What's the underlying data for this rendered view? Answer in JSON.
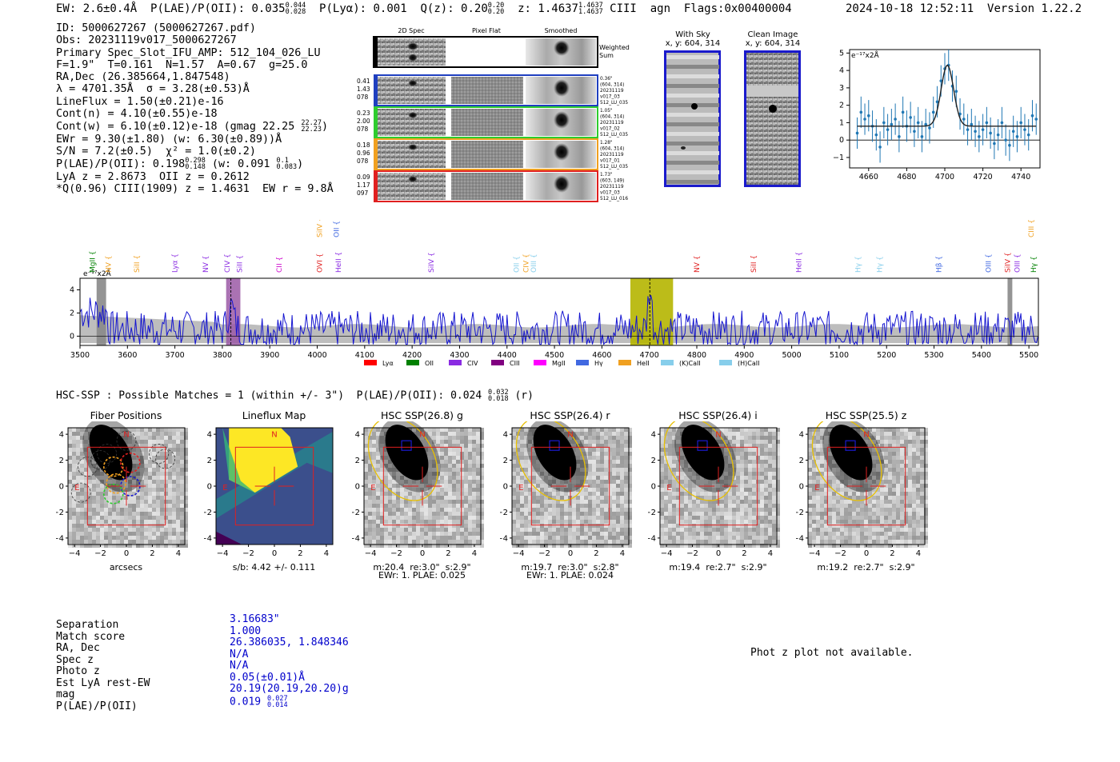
{
  "header": {
    "ew": "EW: 2.6±0.4Å",
    "plae": "P(LAE)/P(OII): 0.035",
    "plae_hi": "0.044",
    "plae_lo": "0.028",
    "plya": "P(Lyα): 0.001",
    "qz": "Q(z): 0.20",
    "qz_hi": "0.20",
    "qz_lo": "0.20",
    "z": "z: 1.4637",
    "z_hi": "1.4637",
    "z_lo": "1.4637",
    "line": "CIII",
    "cls": "agn",
    "flags": "Flags:0x00400004",
    "timestamp": "2024-10-18 12:52:11",
    "version": "Version 1.22.2"
  },
  "info": {
    "id": "ID: 5000627267 (5000627267.pdf)",
    "obs": "Obs: 20231119v017_5000627267",
    "primary": "Primary Spec_Slot_IFU_AMP: 512_104_026_LU",
    "fparams": "F=1.9\"  T=0.161  N=1.57  A=0.67  g=25.0",
    "radec": "RA,Dec (26.385664,1.847548)",
    "lambda": "λ = 4701.35Å  σ = 3.28(±0.53)Å",
    "lineflux": "LineFlux = 1.50(±0.21)e-16",
    "contn": "Cont(n) = 4.10(±0.55)e-18",
    "contw": "Cont(w) = 6.10(±0.12)e-18 (gmag 22.25",
    "gmag_hi": "22.27",
    "gmag_lo": "22.23",
    "ewr": "EWr = 9.30(±1.80) (w: 6.30(±0.89))Å",
    "sn": "S/N = 7.2(±0.5)  χ² = 1.0(±0.2)",
    "plae": "P(LAE)/P(OII): 0.198",
    "plae_hi": "0.298",
    "plae_lo": "0.148",
    "plae_w": "(w: 0.091",
    "plae_w_hi": "0.1",
    "plae_w_lo": "0.083",
    "lya": "LyA z = 2.8673  OII z = 0.2612",
    "qline": "*Q(0.96) CIII(1909) z = 1.4631  EW r = 9.8Å"
  },
  "cutouts": {
    "col_headers": [
      "2D Spec",
      "Pixel Flat",
      "Smoothed"
    ],
    "weighted_sum": "Weighted\nSum",
    "rows": [
      {
        "left": [
          "0.41",
          "1.43",
          "078"
        ],
        "right": [
          "0.36\"",
          "(604, 314)",
          "20231119",
          "v017_03",
          "512_LU_035"
        ],
        "color": "#1f3fbf"
      },
      {
        "left": [
          "0.23",
          "2.00",
          "078"
        ],
        "right": [
          "1.05\"",
          "(604, 314)",
          "20231119",
          "v017_02",
          "512_LU_035"
        ],
        "color": "#2ecc2e"
      },
      {
        "left": [
          "0.18",
          "0.96",
          "078"
        ],
        "right": [
          "1.28\"",
          "(604, 314)",
          "20231119",
          "v017_01",
          "512_LU_035"
        ],
        "color": "#f0a020"
      },
      {
        "left": [
          "0.09",
          "1.17",
          "097"
        ],
        "right": [
          "1.73\"",
          "(603, 149)",
          "20231119",
          "v017_03",
          "512_LU_016"
        ],
        "color": "#e02020"
      }
    ],
    "with_sky": "With Sky",
    "with_sky_xy": "x, y: 604, 314",
    "clean": "Clean Image",
    "clean_xy": "x, y: 604, 314"
  },
  "fit_plot": {
    "ylabel": "e⁻¹⁷x2Å",
    "x_ticks": [
      4660,
      4680,
      4700,
      4720,
      4740
    ],
    "y_ticks": [
      -1,
      0,
      1,
      2,
      3,
      4,
      5
    ],
    "xlim": [
      4650,
      4750
    ],
    "ylim": [
      -1.6,
      5.2
    ]
  },
  "chart_data": [
    {
      "type": "scatter",
      "title": "",
      "xlabel": "",
      "ylabel": "e⁻¹⁷x2Å",
      "xlim": [
        4650,
        4750
      ],
      "ylim": [
        -1.6,
        5.2
      ],
      "x": [
        4654,
        4656,
        4658,
        4660,
        4662,
        4664,
        4666,
        4668,
        4670,
        4672,
        4674,
        4676,
        4678,
        4680,
        4682,
        4684,
        4686,
        4688,
        4690,
        4692,
        4694,
        4696,
        4698,
        4700,
        4702,
        4704,
        4706,
        4708,
        4710,
        4712,
        4714,
        4716,
        4718,
        4720,
        4722,
        4724,
        4726,
        4728,
        4730,
        4732,
        4734,
        4736,
        4738,
        4740,
        4742,
        4744,
        4746,
        4748
      ],
      "y": [
        0.4,
        1.6,
        1.2,
        1.4,
        0.8,
        0.3,
        -0.4,
        1.0,
        0.6,
        0.9,
        1.2,
        0.2,
        1.6,
        0.8,
        1.3,
        0.5,
        1.0,
        0.2,
        0.9,
        0.7,
        1.6,
        2.2,
        3.4,
        4.1,
        4.3,
        3.1,
        2.8,
        1.5,
        1.2,
        0.6,
        0.9,
        0.5,
        0.2,
        0.6,
        1.0,
        0.4,
        -0.2,
        0.3,
        1.0,
        0.0,
        -0.3,
        0.5,
        0.2,
        1.0,
        0.6,
        0.3,
        1.4,
        1.2
      ],
      "err": 0.9,
      "fit_model": {
        "continuum": 0.8,
        "amplitude": 3.5,
        "center": 4701.35,
        "sigma": 3.28
      }
    },
    {
      "type": "line",
      "title": "",
      "xlabel": "",
      "ylabel": "e⁻¹⁷x2Å",
      "xlim": [
        3500,
        5520
      ],
      "ylim": [
        -0.8,
        5.0
      ],
      "highlight_regions": [
        [
          3808,
          3838
        ],
        [
          4660,
          4750
        ]
      ],
      "marker_lines": [
        3818,
        4701
      ],
      "seed": 7
    },
    {
      "type": "heatmap",
      "title": "Fiber Positions",
      "xlim": [
        -4.5,
        4.5
      ],
      "ylim": [
        -4.5,
        4.5
      ]
    }
  ],
  "full_spec": {
    "ylabel": "e⁻¹⁷x2Å",
    "x_ticks": [
      3500,
      3600,
      3700,
      3800,
      3900,
      4000,
      4100,
      4200,
      4300,
      4400,
      4500,
      4600,
      4700,
      4800,
      4900,
      5000,
      5100,
      5200,
      5300,
      5400,
      5500
    ],
    "y_ticks": [
      0,
      2,
      4
    ],
    "line_labels": [
      {
        "text": "MgII",
        "x": 3526,
        "color": "#008000"
      },
      {
        "text": "NV",
        "x": 3560,
        "color": "#f0a020"
      },
      {
        "text": "SiII",
        "x": 3620,
        "color": "#f0a020"
      },
      {
        "text": "Lyα",
        "x": 3700,
        "color": "#8a2be2"
      },
      {
        "text": "NV",
        "x": 3765,
        "color": "#8a2be2"
      },
      {
        "text": "CIV",
        "x": 3810,
        "color": "#8a2be2"
      },
      {
        "text": "SiII",
        "x": 3836,
        "color": "#8a2be2"
      },
      {
        "text": "CII",
        "x": 3920,
        "color": "#cc00cc"
      },
      {
        "text": "SiIV",
        "x": 4005,
        "color": "#f0a020",
        "raised": true
      },
      {
        "text": "OVI",
        "x": 4005,
        "color": "#e02020"
      },
      {
        "text": "OII",
        "x": 4040,
        "color": "#4169e1",
        "raised": true
      },
      {
        "text": "HeII",
        "x": 4045,
        "color": "#8a2be2"
      },
      {
        "text": "SiIV",
        "x": 4240,
        "color": "#8a2be2"
      },
      {
        "text": "OII",
        "x": 4420,
        "color": "#87ceeb"
      },
      {
        "text": "CIV",
        "x": 4440,
        "color": "#f0a020"
      },
      {
        "text": "OIII",
        "x": 4456,
        "color": "#87ceeb"
      },
      {
        "text": "NV",
        "x": 4800,
        "color": "#e02020"
      },
      {
        "text": "SiII",
        "x": 4920,
        "color": "#e02020"
      },
      {
        "text": "HeII",
        "x": 5015,
        "color": "#8a2be2"
      },
      {
        "text": "Hγ",
        "x": 5140,
        "color": "#87ceeb"
      },
      {
        "text": "Hγ",
        "x": 5185,
        "color": "#87ceeb"
      },
      {
        "text": "Hβ",
        "x": 5310,
        "color": "#4169e1"
      },
      {
        "text": "OIII",
        "x": 5415,
        "color": "#4169e1"
      },
      {
        "text": "SiIV",
        "x": 5455,
        "color": "#e02020"
      },
      {
        "text": "OIII",
        "x": 5475,
        "color": "#8a2be2"
      },
      {
        "text": "CIII",
        "x": 5505,
        "color": "#f0a020",
        "raised": true
      },
      {
        "text": "Hγ",
        "x": 5510,
        "color": "#008000"
      }
    ],
    "legend": [
      {
        "label": "Lyα",
        "color": "#ff0000"
      },
      {
        "label": "OII",
        "color": "#008000"
      },
      {
        "label": "CIV",
        "color": "#8a2be2"
      },
      {
        "label": "CIII",
        "color": "#800080"
      },
      {
        "label": "MgII",
        "color": "#ff00ff"
      },
      {
        "label": "Hγ",
        "color": "#4169e1"
      },
      {
        "label": "HeII",
        "color": "#f0a020"
      },
      {
        "label": "(K)CaII",
        "color": "#87ceeb"
      },
      {
        "label": "(H)CaII",
        "color": "#87ceeb"
      }
    ]
  },
  "hsc": {
    "summary": "HSC-SSP : Possible Matches = 1 (within +/- 3\")  P(LAE)/P(OII): 0.024",
    "summary_hi": "0.032",
    "summary_lo": "0.018",
    "summary_band": "(r)",
    "ticks": [
      "−4",
      "−2",
      "0",
      "2",
      "4"
    ],
    "panels": [
      {
        "title": "Fiber Positions",
        "captions": [
          "arcsecs"
        ]
      },
      {
        "title": "Lineflux Map",
        "captions": [
          "s/b: 4.42 +/- 0.111"
        ]
      },
      {
        "title": "HSC SSP(26.8) g",
        "captions": [
          "m:20.4  re:3.0\"  s:2.9\"",
          "EWr: 1. PLAE: 0.025"
        ]
      },
      {
        "title": "HSC SSP(26.4) r",
        "captions": [
          "m:19.7  re:3.0\"  s:2.8\"",
          "EWr: 1. PLAE: 0.024"
        ]
      },
      {
        "title": "HSC SSP(26.4) i",
        "captions": [
          "m:19.4  re:2.7\"  s:2.9\""
        ]
      },
      {
        "title": "HSC SSP(25.5) z",
        "captions": [
          "m:19.2  re:2.7\"  s:2.9\""
        ]
      }
    ]
  },
  "match": {
    "labels": [
      "Separation",
      "Match score",
      "RA, Dec",
      "Spec z",
      "Photo z",
      "Est LyA rest-EW",
      "mag",
      "P(LAE)/P(OII)"
    ],
    "values": [
      "3.16683\"",
      "1.000",
      "26.386035, 1.848346",
      "N/A",
      "N/A",
      "0.05(±0.01)Å",
      "20.19(20.19,20.20)g",
      "0.019"
    ],
    "plae_hi": "0.027",
    "plae_lo": "0.014"
  },
  "photz_note": "Phot z plot not available."
}
